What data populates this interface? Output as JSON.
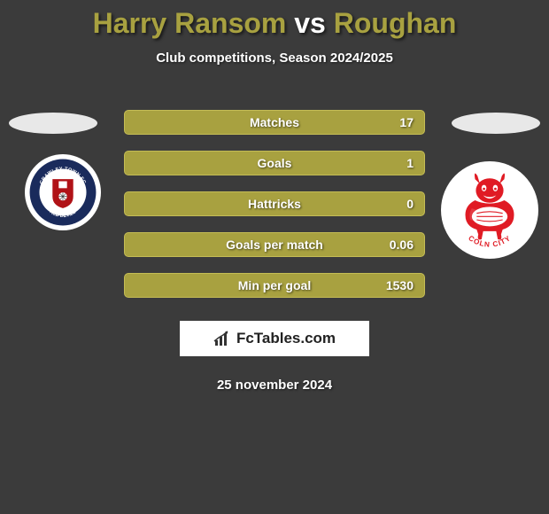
{
  "title": {
    "player1": "Harry Ransom",
    "vs": "vs",
    "player2": "Roughan",
    "color_player": "#a8a140",
    "color_vs": "#ffffff"
  },
  "subtitle": "Club competitions, Season 2024/2025",
  "stats": {
    "bar_fill": "#a8a140",
    "bar_border": "#c4bc55",
    "rows": [
      {
        "label": "Matches",
        "value": "17"
      },
      {
        "label": "Goals",
        "value": "1"
      },
      {
        "label": "Hattricks",
        "value": "0"
      },
      {
        "label": "Goals per match",
        "value": "0.06"
      },
      {
        "label": "Min per goal",
        "value": "1530"
      }
    ]
  },
  "crest_left": {
    "outer_text_top": "CRAWLEY TOWN FC",
    "outer_text_bottom": "RED DEVILS",
    "ring_color": "#1a2b5c",
    "shield_fill": "#b01217",
    "shield_stroke": "#ffffff"
  },
  "crest_right": {
    "text": "COLN CITY",
    "imp_color": "#e01b24",
    "bg": "#ffffff"
  },
  "brand": {
    "text": "FcTables.com",
    "icon_color": "#333333"
  },
  "date": "25 november 2024",
  "colors": {
    "page_bg": "#3b3b3b",
    "ellipse": "#e8e8e8"
  }
}
